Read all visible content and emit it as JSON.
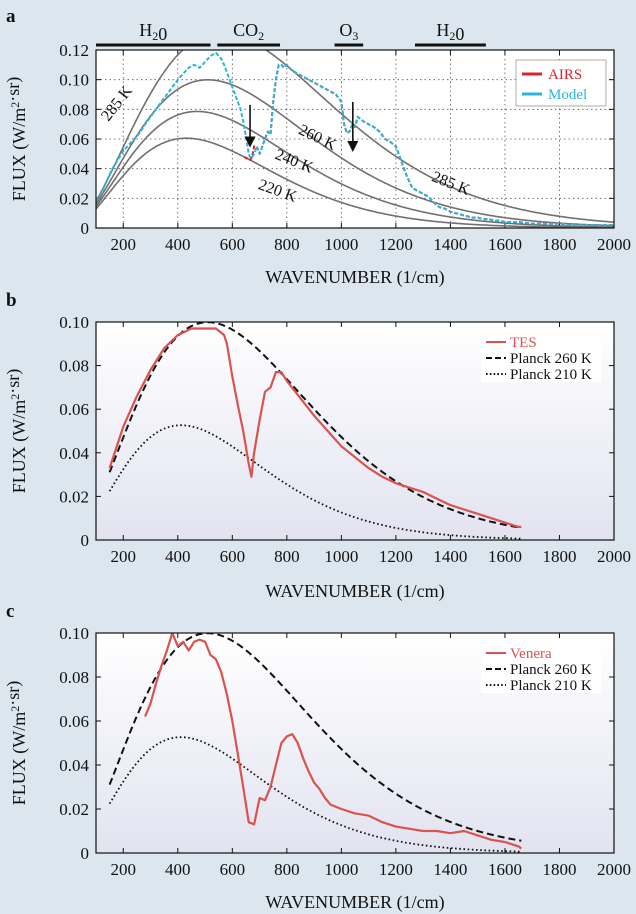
{
  "chart_data": [
    {
      "panel": "a",
      "type": "line",
      "xlabel": "WAVENUMBER (1/cm)",
      "ylabel": "FLUX (W/m²·sr)",
      "xlim": [
        100,
        2000
      ],
      "ylim": [
        0,
        0.12
      ],
      "xticks": [
        200,
        400,
        600,
        800,
        1000,
        1200,
        1400,
        1600,
        1800,
        2000
      ],
      "yticks": [
        "0",
        "0.02",
        "0.04",
        "0.06",
        "0.08",
        "0.10",
        "0.12"
      ],
      "grid": true,
      "legend_position": "top-right",
      "legend": [
        {
          "name": "AIRS",
          "color": "#d8232a",
          "style": "solid"
        },
        {
          "name": "Model",
          "color": "#2bb5d8",
          "style": "solid"
        }
      ],
      "absorption_bands": [
        {
          "label": "H₂0",
          "x_from": 100,
          "x_to": 520
        },
        {
          "label": "CO₂",
          "x_from": 545,
          "x_to": 775
        },
        {
          "label": "O₃",
          "x_from": 975,
          "x_to": 1080
        },
        {
          "label": "H₂0",
          "x_from": 1270,
          "x_to": 1530
        }
      ],
      "arrows": [
        {
          "x": 665,
          "y_from": 0.083,
          "y_to": 0.058
        },
        {
          "x": 1042,
          "y_from": 0.085,
          "y_to": 0.055
        }
      ],
      "planck_curves": [
        {
          "label": "285 K",
          "temperature": 285,
          "color": "#707070"
        },
        {
          "label": "260 K",
          "temperature": 260,
          "color": "#707070"
        },
        {
          "label": "240 K",
          "temperature": 240,
          "color": "#707070"
        },
        {
          "label": "220 K",
          "temperature": 220,
          "color": "#707070"
        }
      ],
      "curve_labels": [
        {
          "text": "285 K",
          "x": 190,
          "y": 0.082,
          "angle": -52
        },
        {
          "text": "260 K",
          "x": 905,
          "y": 0.058,
          "angle": 26
        },
        {
          "text": "240 K",
          "x": 820,
          "y": 0.042,
          "angle": 22
        },
        {
          "text": "220 K",
          "x": 760,
          "y": 0.022,
          "angle": 20
        },
        {
          "text": "285 K",
          "x": 1395,
          "y": 0.027,
          "angle": 22
        }
      ],
      "series": [
        {
          "name": "AIRS",
          "color": "#d8232a",
          "style": "dashed",
          "x": [
            645,
            650,
            655,
            660,
            665,
            670,
            675,
            680,
            690,
            700,
            710,
            720,
            730,
            740,
            750,
            760,
            770,
            780,
            790,
            800,
            820,
            840,
            860,
            880,
            900,
            920,
            940,
            960,
            980,
            1000,
            1010,
            1020,
            1030,
            1040,
            1050,
            1060,
            1080,
            1100,
            1120,
            1140,
            1160,
            1180,
            1200,
            1220,
            1240,
            1260,
            1280,
            1300,
            1320,
            1340,
            1360,
            1380,
            1400,
            1420,
            1440,
            1460,
            1480,
            1500,
            1520,
            1540,
            1560,
            1580,
            1600,
            1650,
            1700,
            1750,
            1800,
            1850,
            1900,
            1950,
            2000
          ],
          "y": [
            0.048,
            0.047,
            0.047,
            0.046,
            0.046,
            0.047,
            0.05,
            0.055,
            0.055,
            0.05,
            0.055,
            0.06,
            0.065,
            0.063,
            0.085,
            0.1,
            0.11,
            0.11,
            0.108,
            0.11,
            0.106,
            0.104,
            0.102,
            0.1,
            0.098,
            0.096,
            0.094,
            0.092,
            0.09,
            0.085,
            0.07,
            0.064,
            0.065,
            0.07,
            0.068,
            0.075,
            0.072,
            0.07,
            0.068,
            0.065,
            0.06,
            0.058,
            0.055,
            0.045,
            0.035,
            0.027,
            0.025,
            0.023,
            0.021,
            0.017,
            0.014,
            0.013,
            0.011,
            0.01,
            0.009,
            0.008,
            0.007,
            0.007,
            0.006,
            0.006,
            0.005,
            0.005,
            0.004,
            0.004,
            0.003,
            0.003,
            0.003,
            0.002,
            0.002,
            0.002,
            0.002
          ]
        },
        {
          "name": "Model",
          "color": "#2bb5d8",
          "style": "dashed",
          "x": [
            100,
            120,
            140,
            160,
            180,
            200,
            220,
            240,
            260,
            280,
            300,
            320,
            340,
            360,
            380,
            400,
            420,
            440,
            460,
            480,
            500,
            520,
            540,
            560,
            570,
            580,
            590,
            600,
            610,
            620,
            630,
            640,
            650,
            660,
            665,
            670,
            680,
            690,
            700,
            710,
            720,
            730,
            740,
            750,
            760,
            770,
            780,
            790,
            800,
            820,
            840,
            860,
            880,
            900,
            920,
            940,
            960,
            980,
            1000,
            1010,
            1020,
            1030,
            1040,
            1050,
            1060,
            1080,
            1100,
            1120,
            1140,
            1160,
            1180,
            1200,
            1220,
            1240,
            1260,
            1280,
            1300,
            1320,
            1340,
            1360,
            1380,
            1400,
            1420,
            1440,
            1460,
            1480,
            1500,
            1520,
            1540,
            1560,
            1580,
            1600,
            1650,
            1700,
            1750,
            1800,
            1850,
            1900,
            1950,
            2000
          ],
          "y": [
            0.018,
            0.024,
            0.032,
            0.04,
            0.046,
            0.052,
            0.056,
            0.06,
            0.064,
            0.07,
            0.075,
            0.08,
            0.085,
            0.09,
            0.095,
            0.1,
            0.104,
            0.108,
            0.11,
            0.108,
            0.112,
            0.116,
            0.118,
            0.114,
            0.11,
            0.105,
            0.1,
            0.095,
            0.09,
            0.085,
            0.08,
            0.072,
            0.062,
            0.05,
            0.048,
            0.047,
            0.05,
            0.055,
            0.05,
            0.055,
            0.06,
            0.065,
            0.063,
            0.085,
            0.1,
            0.11,
            0.11,
            0.108,
            0.11,
            0.106,
            0.104,
            0.102,
            0.1,
            0.098,
            0.096,
            0.094,
            0.092,
            0.09,
            0.085,
            0.07,
            0.064,
            0.065,
            0.07,
            0.068,
            0.075,
            0.072,
            0.07,
            0.068,
            0.065,
            0.06,
            0.058,
            0.055,
            0.045,
            0.035,
            0.027,
            0.025,
            0.023,
            0.021,
            0.017,
            0.014,
            0.013,
            0.011,
            0.01,
            0.009,
            0.008,
            0.007,
            0.007,
            0.006,
            0.006,
            0.005,
            0.005,
            0.004,
            0.004,
            0.003,
            0.003,
            0.003,
            0.002,
            0.002,
            0.002,
            0.002
          ]
        }
      ]
    },
    {
      "panel": "b",
      "type": "line",
      "xlabel": "WAVENUMBER (1/cm)",
      "ylabel": "FLUX (W/m²·sr)",
      "xlim": [
        100,
        2000
      ],
      "ylim": [
        0,
        0.1
      ],
      "xticks": [
        200,
        400,
        600,
        800,
        1000,
        1200,
        1400,
        1600,
        1800,
        2000
      ],
      "yticks": [
        "0",
        "0.02",
        "0.04",
        "0.06",
        "0.08",
        "0.10"
      ],
      "grid": false,
      "legend_position": "top-right",
      "legend": [
        {
          "name": "TES",
          "color": "#d9534f",
          "style": "solid"
        },
        {
          "name": "Planck 260 K",
          "color": "#111111",
          "style": "dashed"
        },
        {
          "name": "Planck 210 K",
          "color": "#111111",
          "style": "dotted"
        }
      ],
      "planck_curves": [
        {
          "label": "Planck 260 K",
          "temperature": 260,
          "style": "dashed",
          "color": "#111111",
          "x_range": [
            150,
            1660
          ]
        },
        {
          "label": "Planck 210 K",
          "temperature": 210,
          "style": "dotted",
          "color": "#111111",
          "x_range": [
            150,
            1660
          ]
        }
      ],
      "series": [
        {
          "name": "TES",
          "color": "#d9534f",
          "x": [
            150,
            200,
            250,
            300,
            350,
            400,
            450,
            500,
            540,
            570,
            580,
            600,
            620,
            640,
            660,
            670,
            680,
            700,
            720,
            740,
            760,
            780,
            800,
            850,
            900,
            950,
            1000,
            1050,
            1100,
            1150,
            1200,
            1250,
            1300,
            1350,
            1400,
            1450,
            1500,
            1550,
            1600,
            1650,
            1660
          ],
          "y": [
            0.033,
            0.052,
            0.066,
            0.078,
            0.088,
            0.094,
            0.097,
            0.097,
            0.097,
            0.094,
            0.09,
            0.075,
            0.062,
            0.05,
            0.035,
            0.029,
            0.04,
            0.055,
            0.068,
            0.07,
            0.077,
            0.077,
            0.073,
            0.065,
            0.057,
            0.05,
            0.043,
            0.038,
            0.033,
            0.029,
            0.026,
            0.024,
            0.022,
            0.019,
            0.016,
            0.014,
            0.012,
            0.01,
            0.008,
            0.006,
            0.006
          ]
        }
      ]
    },
    {
      "panel": "c",
      "type": "line",
      "xlabel": "WAVENUMBER (1/cm)",
      "ylabel": "FLUX (W/m²·sr)",
      "xlim": [
        100,
        2000
      ],
      "ylim": [
        0,
        0.1
      ],
      "xticks": [
        200,
        400,
        600,
        800,
        1000,
        1200,
        1400,
        1600,
        1800,
        2000
      ],
      "yticks": [
        "0",
        "0.02",
        "0.04",
        "0.06",
        "0.08",
        "0.10"
      ],
      "grid": false,
      "legend_position": "top-right",
      "legend": [
        {
          "name": "Venera",
          "color": "#d9534f",
          "style": "solid"
        },
        {
          "name": "Planck 260 K",
          "color": "#111111",
          "style": "dashed"
        },
        {
          "name": "Planck 210 K",
          "color": "#111111",
          "style": "dotted"
        }
      ],
      "planck_curves": [
        {
          "label": "Planck 260 K",
          "temperature": 260,
          "style": "dashed",
          "color": "#111111",
          "x_range": [
            150,
            1660
          ]
        },
        {
          "label": "Planck 210 K",
          "temperature": 210,
          "style": "dotted",
          "color": "#111111",
          "x_range": [
            150,
            1660
          ]
        }
      ],
      "series": [
        {
          "name": "Venera",
          "color": "#d9534f",
          "x": [
            280,
            300,
            320,
            340,
            360,
            380,
            400,
            420,
            440,
            460,
            480,
            500,
            520,
            540,
            560,
            580,
            600,
            620,
            640,
            660,
            680,
            700,
            720,
            740,
            760,
            780,
            800,
            820,
            840,
            860,
            880,
            900,
            920,
            940,
            960,
            1000,
            1050,
            1100,
            1150,
            1200,
            1250,
            1300,
            1350,
            1400,
            1450,
            1500,
            1550,
            1600,
            1650,
            1660
          ],
          "y": [
            0.062,
            0.068,
            0.077,
            0.085,
            0.092,
            0.1,
            0.094,
            0.096,
            0.092,
            0.096,
            0.097,
            0.096,
            0.09,
            0.088,
            0.082,
            0.072,
            0.06,
            0.045,
            0.03,
            0.014,
            0.013,
            0.025,
            0.024,
            0.03,
            0.04,
            0.05,
            0.053,
            0.054,
            0.05,
            0.043,
            0.037,
            0.032,
            0.029,
            0.025,
            0.022,
            0.02,
            0.018,
            0.017,
            0.014,
            0.012,
            0.011,
            0.01,
            0.01,
            0.009,
            0.01,
            0.008,
            0.006,
            0.005,
            0.003,
            0.002
          ]
        }
      ]
    }
  ]
}
